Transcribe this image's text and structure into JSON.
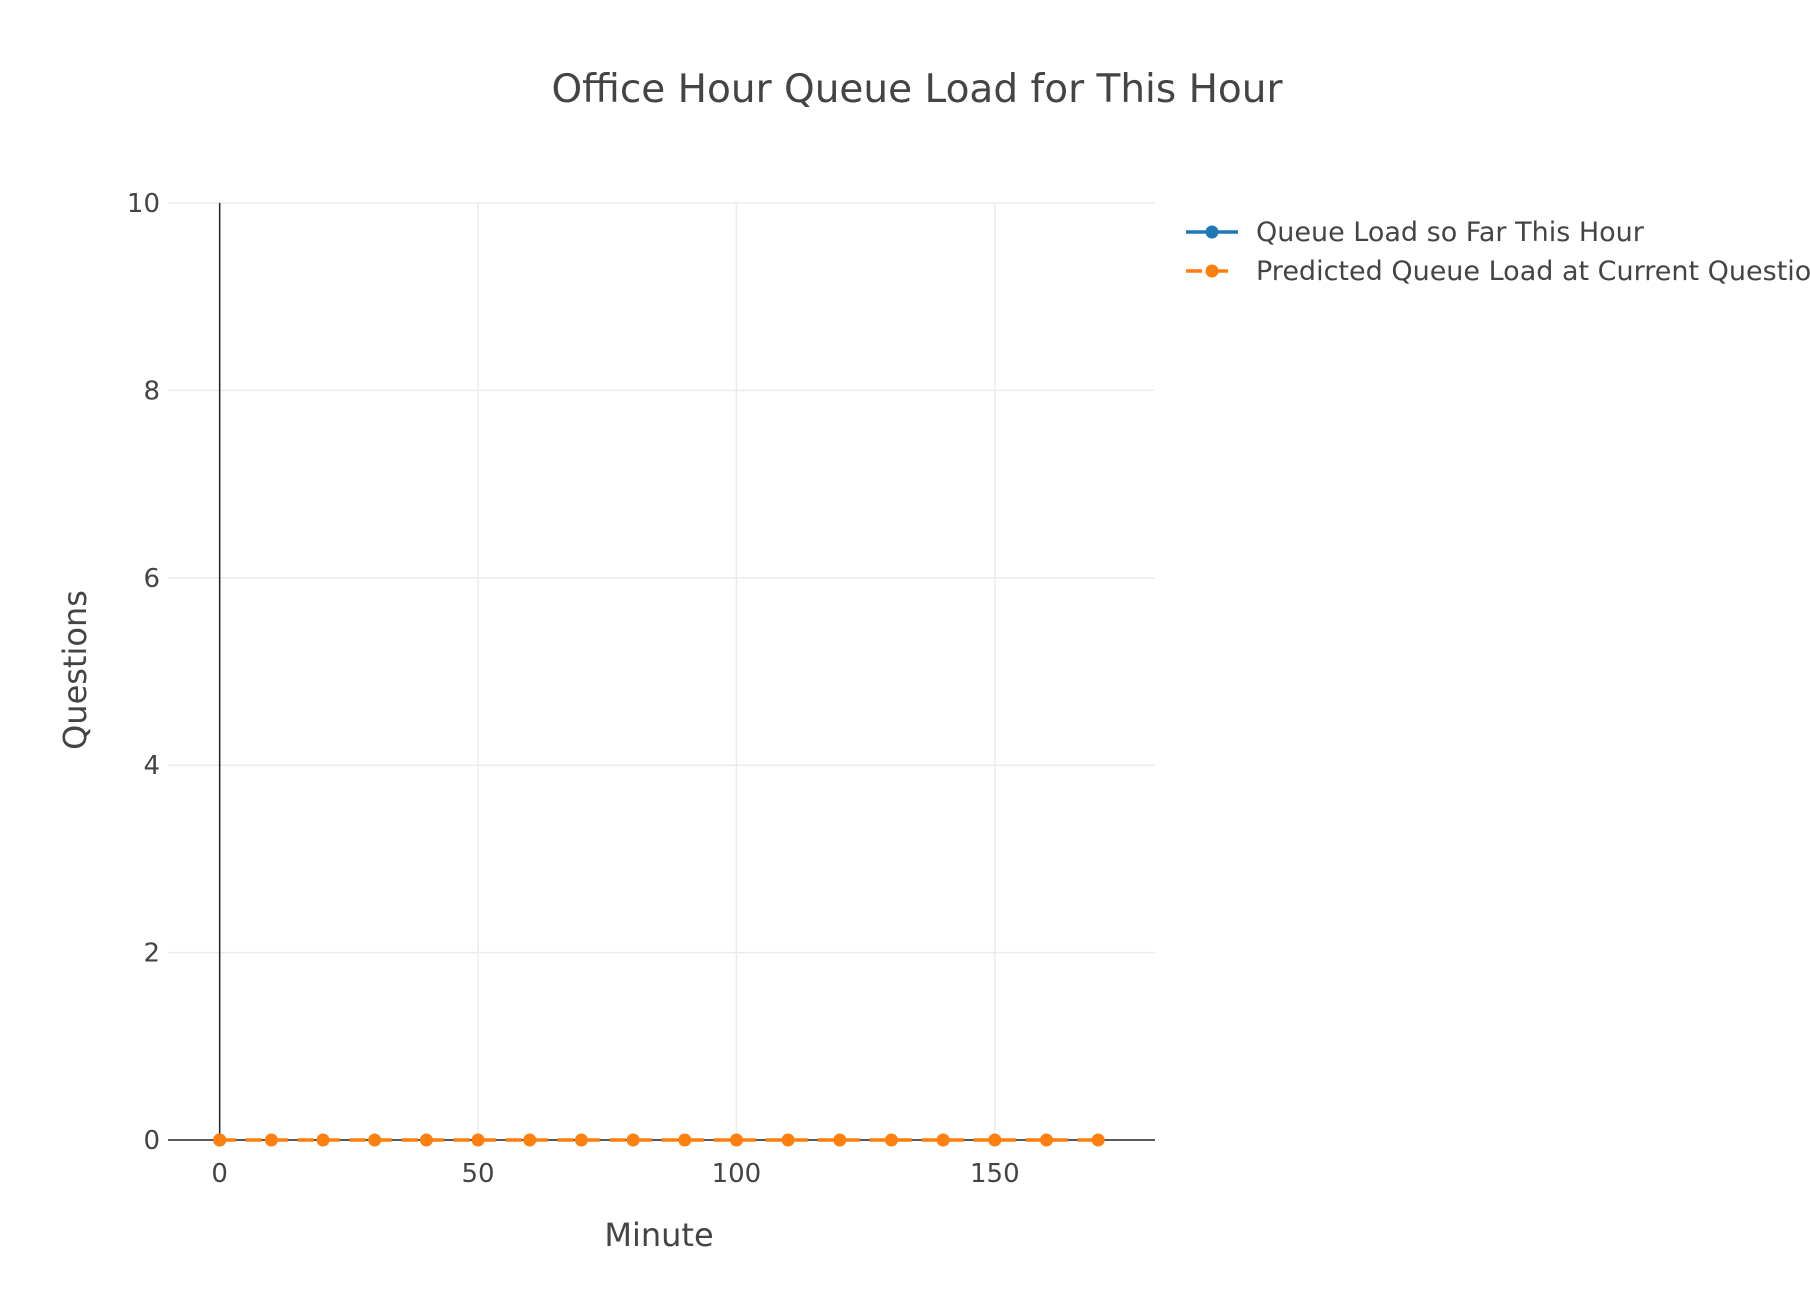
{
  "chart_data": {
    "type": "line",
    "title": "Office Hour Queue Load for This Hour",
    "xlabel": "Minute",
    "ylabel": "Questions",
    "xlim": [
      -10,
      181
    ],
    "ylim": [
      0,
      10
    ],
    "xticks": [
      0,
      50,
      100,
      150
    ],
    "yticks": [
      0,
      2,
      4,
      6,
      8,
      10
    ],
    "grid": true,
    "legend_position": "top-right (outside plot)",
    "series": [
      {
        "name": "Queue Load so Far This Hour",
        "color": "#1f77b4",
        "dash": "solid",
        "x": [
          0
        ],
        "y": [
          0
        ]
      },
      {
        "name": "Predicted Queue Load at Current Question Rate",
        "color": "#ff7f0e",
        "dash": "dash",
        "x": [
          0,
          10,
          20,
          30,
          40,
          50,
          60,
          70,
          80,
          90,
          100,
          110,
          120,
          130,
          140,
          150,
          160,
          170
        ],
        "y": [
          0,
          0,
          0,
          0,
          0,
          0,
          0,
          0,
          0,
          0,
          0,
          0,
          0,
          0,
          0,
          0,
          0,
          0
        ]
      }
    ]
  }
}
